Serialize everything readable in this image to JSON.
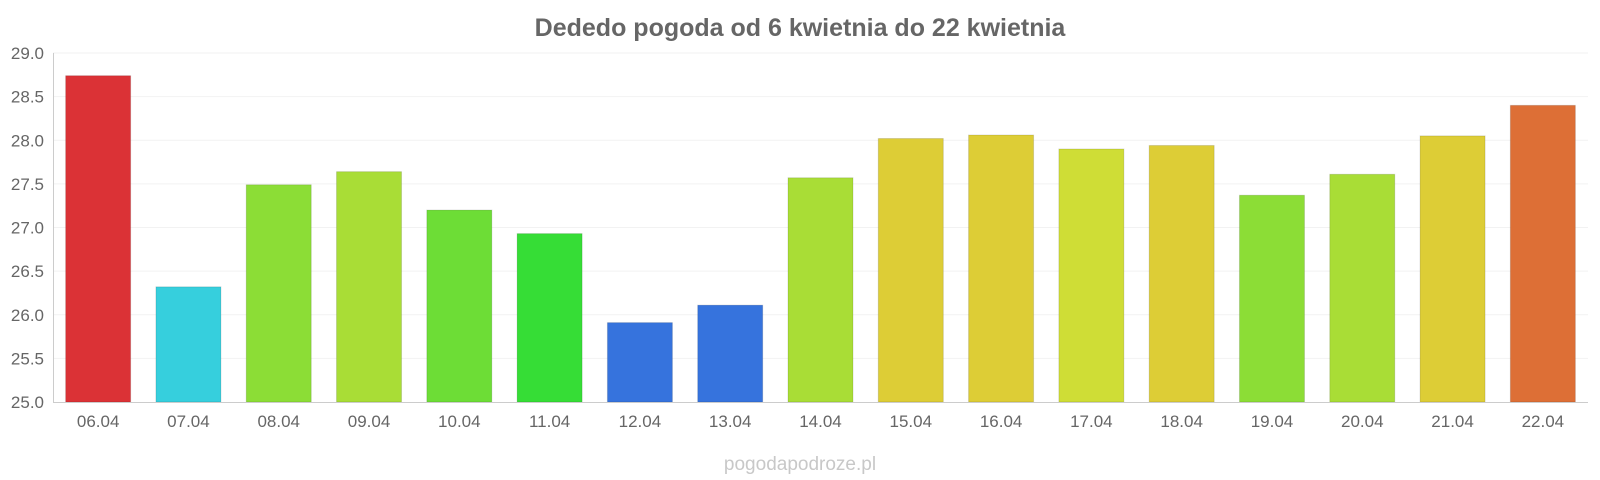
{
  "chart_data": {
    "type": "bar",
    "title": "Dededo pogoda od 6 kwietnia do 22 kwietnia",
    "xlabel": "",
    "ylabel": "",
    "categories": [
      "06.04",
      "07.04",
      "08.04",
      "09.04",
      "10.04",
      "11.04",
      "12.04",
      "13.04",
      "14.04",
      "15.04",
      "16.04",
      "17.04",
      "18.04",
      "19.04",
      "20.04",
      "21.04",
      "22.04"
    ],
    "values": [
      28.74,
      26.32,
      27.49,
      27.64,
      27.2,
      26.93,
      25.91,
      26.11,
      27.57,
      28.02,
      28.06,
      27.9,
      27.94,
      27.37,
      27.61,
      28.05,
      28.4
    ],
    "colors": [
      "#db3236",
      "#36cfdd",
      "#8cdd36",
      "#a9dd36",
      "#6ddd36",
      "#36dd36",
      "#3673dd",
      "#3673dd",
      "#a9dd36",
      "#ddcd36",
      "#ddcd36",
      "#cfdd36",
      "#ddcd36",
      "#8cdd36",
      "#a9dd36",
      "#ddcd36",
      "#dd6f36"
    ],
    "ylim": [
      25.0,
      29.0
    ],
    "yticks": [
      "25.0",
      "25.5",
      "26.0",
      "26.5",
      "27.0",
      "27.5",
      "28.0",
      "28.5",
      "29.0"
    ],
    "grid": true,
    "legend": "none"
  },
  "watermark": "pogodapodroze.pl"
}
